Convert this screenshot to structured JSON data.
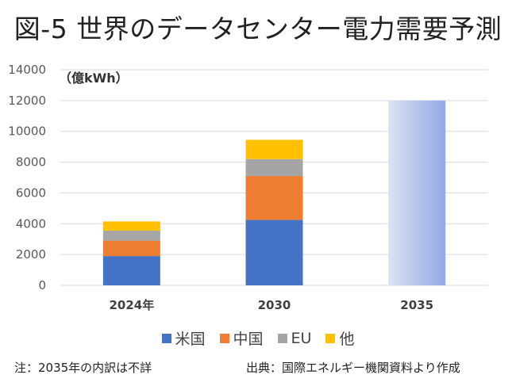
{
  "title": "図-5 世界のデータセンター電力需要予測",
  "unit_label": "（億kWh）",
  "note": "注：2035年の内訳は不詳",
  "source": "出典：国際エネルギー機関資料より作成",
  "chart_data": {
    "type": "bar",
    "stacked": true,
    "title": "図-5 世界のデータセンター電力需要予測",
    "xlabel": "",
    "ylabel": "（億kWh）",
    "ylim": [
      0,
      14000
    ],
    "yticks": [
      0,
      2000,
      4000,
      6000,
      8000,
      10000,
      12000,
      14000
    ],
    "grid": true,
    "legend_position": "bottom",
    "categories": [
      "2024年",
      "2030",
      "2035"
    ],
    "series": [
      {
        "name": "米国",
        "color": "#4472C4",
        "values": [
          1900,
          4250,
          null
        ]
      },
      {
        "name": "中国",
        "color": "#ED7D31",
        "values": [
          1000,
          2850,
          null
        ]
      },
      {
        "name": "EU",
        "color": "#A5A5A5",
        "values": [
          650,
          1100,
          null
        ]
      },
      {
        "name": "他",
        "color": "#FFC000",
        "values": [
          600,
          1250,
          null
        ]
      }
    ],
    "totals_unbroken_down": [
      {
        "category": "2035",
        "value": 12000,
        "fill": "gradient",
        "color_from": "#DCE3F5",
        "color_to": "#92A8E6"
      }
    ]
  }
}
